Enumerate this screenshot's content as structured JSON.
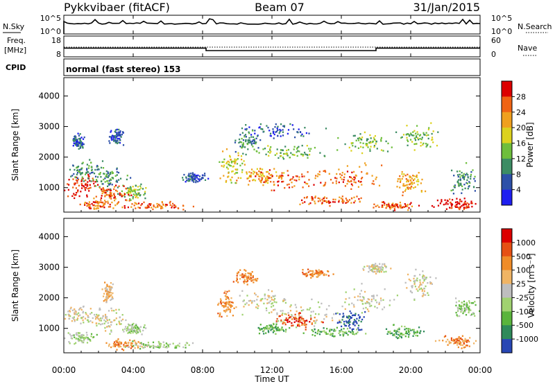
{
  "header": {
    "radar": "Pykkvibaer (fitACF)",
    "beam": "Beam 07",
    "date": "31/Jan/2015"
  },
  "cpid_label": "CPID",
  "cpid_text": "normal (fast stereo) 153",
  "chart_data": [
    {
      "id": "noise",
      "type": "line",
      "left_label": "N.Sky",
      "right_label": "N.Search",
      "left_ticks": [
        "10^5",
        "10^0"
      ],
      "right_ticks": [
        "10^5",
        "10^0"
      ]
    },
    {
      "id": "freq-nave",
      "type": "line",
      "left_label_top": "Freq.",
      "left_label_bottom": "[MHz]",
      "right_label": "Nave",
      "left_ticks": [
        "18",
        "8"
      ],
      "right_ticks": [
        "60",
        "0"
      ],
      "freq_steps": [
        {
          "from": 0,
          "to": 8.2,
          "level": 0.42
        },
        {
          "from": 8.2,
          "to": 18.0,
          "level": 0.3
        },
        {
          "from": 18.0,
          "to": 24,
          "level": 0.42
        }
      ]
    },
    {
      "id": "power",
      "type": "heatmap",
      "ylabel": "Slant Range [km]",
      "yticks": [
        1000,
        2000,
        3000,
        4000
      ],
      "ylim": [
        200,
        4600
      ],
      "colorbar_label": "Power [dB]",
      "colorbar_ticks": [
        "28",
        "24",
        "20",
        "16",
        "12",
        "8",
        "4"
      ],
      "colors": [
        "#1e1ef0",
        "#2d50a8",
        "#3c8c64",
        "#6ebe3c",
        "#dcd21e",
        "#f0a01e",
        "#f06414",
        "#dc0000"
      ]
    },
    {
      "id": "velocity",
      "type": "heatmap",
      "ylabel": "Slant Range [km]",
      "yticks": [
        1000,
        2000,
        3000,
        4000
      ],
      "ylim": [
        200,
        4600
      ],
      "colorbar_label": "Velocity [m s⁻¹]",
      "colorbar_ticks": [
        "1000",
        "500",
        "100",
        "25",
        "-25",
        "-100",
        "-500",
        "-1000"
      ],
      "colors": [
        "#2846b4",
        "#2f8a5a",
        "#5ab43c",
        "#a0d270",
        "#bebebe",
        "#f0b464",
        "#f08c28",
        "#e65014",
        "#dc0000"
      ]
    }
  ],
  "xaxis": {
    "ticks": [
      "00:00",
      "04:00",
      "08:00",
      "12:00",
      "16:00",
      "20:00",
      "00:00"
    ],
    "label": "Time UT"
  },
  "blobs_power": [
    [
      1.0,
      1050,
      1.2,
      500,
      7
    ],
    [
      1.2,
      1600,
      1.3,
      400,
      2
    ],
    [
      2.5,
      1300,
      1.5,
      500,
      2
    ],
    [
      4.0,
      900,
      1.0,
      300,
      3
    ],
    [
      2.8,
      800,
      1.4,
      400,
      6
    ],
    [
      2.0,
      460,
      1.2,
      200,
      6
    ],
    [
      5.3,
      420,
      2.5,
      150,
      6
    ],
    [
      3.0,
      2700,
      0.5,
      400,
      1
    ],
    [
      0.8,
      2500,
      0.5,
      300,
      1
    ],
    [
      7.5,
      1350,
      0.9,
      200,
      1
    ],
    [
      9.6,
      1700,
      0.9,
      700,
      4
    ],
    [
      11.3,
      1400,
      2.0,
      350,
      5
    ],
    [
      13.0,
      1300,
      3.0,
      450,
      6
    ],
    [
      16.6,
      1350,
      2.2,
      550,
      6
    ],
    [
      19.8,
      1200,
      1.0,
      500,
      5
    ],
    [
      13.0,
      2200,
      2.5,
      300,
      3
    ],
    [
      17.5,
      2500,
      1.8,
      400,
      3
    ],
    [
      20.4,
      2650,
      1.4,
      500,
      3
    ],
    [
      15.5,
      600,
      2.5,
      200,
      6
    ],
    [
      19.0,
      430,
      2.0,
      150,
      6
    ],
    [
      22.6,
      500,
      1.6,
      250,
      7
    ],
    [
      23.0,
      1300,
      1.0,
      600,
      2
    ],
    [
      12.5,
      2900,
      3.0,
      300,
      1
    ],
    [
      10.5,
      2500,
      1.0,
      500,
      2
    ]
  ],
  "blobs_velocity": [
    [
      1.0,
      1500,
      1.5,
      400,
      4
    ],
    [
      1.0,
      700,
      1.0,
      250,
      3
    ],
    [
      2.5,
      1300,
      1.5,
      500,
      4
    ],
    [
      3.5,
      500,
      1.5,
      200,
      6
    ],
    [
      4.0,
      1000,
      0.8,
      200,
      3
    ],
    [
      2.5,
      2200,
      0.4,
      400,
      5
    ],
    [
      5.5,
      450,
      2.0,
      150,
      3
    ],
    [
      9.3,
      1800,
      0.6,
      500,
      6
    ],
    [
      11.5,
      1900,
      2.0,
      500,
      4
    ],
    [
      14.0,
      1500,
      3.0,
      500,
      4
    ],
    [
      17.5,
      1900,
      2.0,
      600,
      4
    ],
    [
      20.5,
      2500,
      1.2,
      600,
      4
    ],
    [
      13.5,
      1250,
      1.5,
      300,
      7
    ],
    [
      15.5,
      900,
      2.0,
      200,
      2
    ],
    [
      19.5,
      900,
      1.5,
      250,
      2
    ],
    [
      22.6,
      600,
      1.2,
      250,
      6
    ],
    [
      23.2,
      1700,
      0.8,
      400,
      3
    ],
    [
      10.5,
      2700,
      0.8,
      300,
      6
    ],
    [
      14.5,
      2800,
      1.0,
      200,
      6
    ],
    [
      18.0,
      3000,
      1.0,
      200,
      4
    ],
    [
      16.5,
      1300,
      1.0,
      400,
      0
    ],
    [
      12.0,
      1000,
      1.0,
      200,
      2
    ]
  ]
}
